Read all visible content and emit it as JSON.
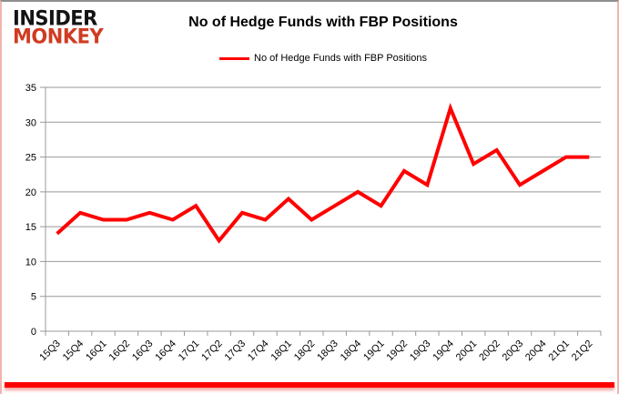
{
  "logo": {
    "line1": "INSIDER",
    "line2": "MONKEY"
  },
  "header": {
    "title": "No of Hedge Funds with FBP Positions"
  },
  "legend": {
    "label": "No of Hedge Funds with FBP Positions"
  },
  "colors": {
    "series": "#ff0000",
    "grid": "#999999",
    "axis_text": "#000000",
    "logo_black": "#141414",
    "logo_red": "#cf3c22",
    "bottom_bar": "#ff0000",
    "border_pink": "#f0b4ae",
    "border_top": "#8e8e8e"
  },
  "chart_data": {
    "type": "line",
    "title": "No of Hedge Funds with FBP Positions",
    "categories": [
      "15Q3",
      "15Q4",
      "16Q1",
      "16Q2",
      "16Q3",
      "16Q4",
      "17Q1",
      "17Q2",
      "17Q3",
      "17Q4",
      "18Q1",
      "18Q2",
      "18Q3",
      "18Q4",
      "19Q1",
      "19Q2",
      "19Q3",
      "19Q4",
      "20Q1",
      "20Q2",
      "20Q3",
      "20Q4",
      "21Q1",
      "21Q2"
    ],
    "series": [
      {
        "name": "No of Hedge Funds with FBP Positions",
        "color": "#ff0000",
        "values": [
          14,
          17,
          16,
          16,
          17,
          16,
          18,
          13,
          17,
          16,
          19,
          16,
          18,
          20,
          18,
          23,
          21,
          32,
          24,
          26,
          21,
          23,
          25,
          25
        ]
      }
    ],
    "xlabel": "",
    "ylabel": "",
    "ylim": [
      0,
      35
    ],
    "ytick_step": 5,
    "grid": true,
    "legend_position": "top"
  }
}
